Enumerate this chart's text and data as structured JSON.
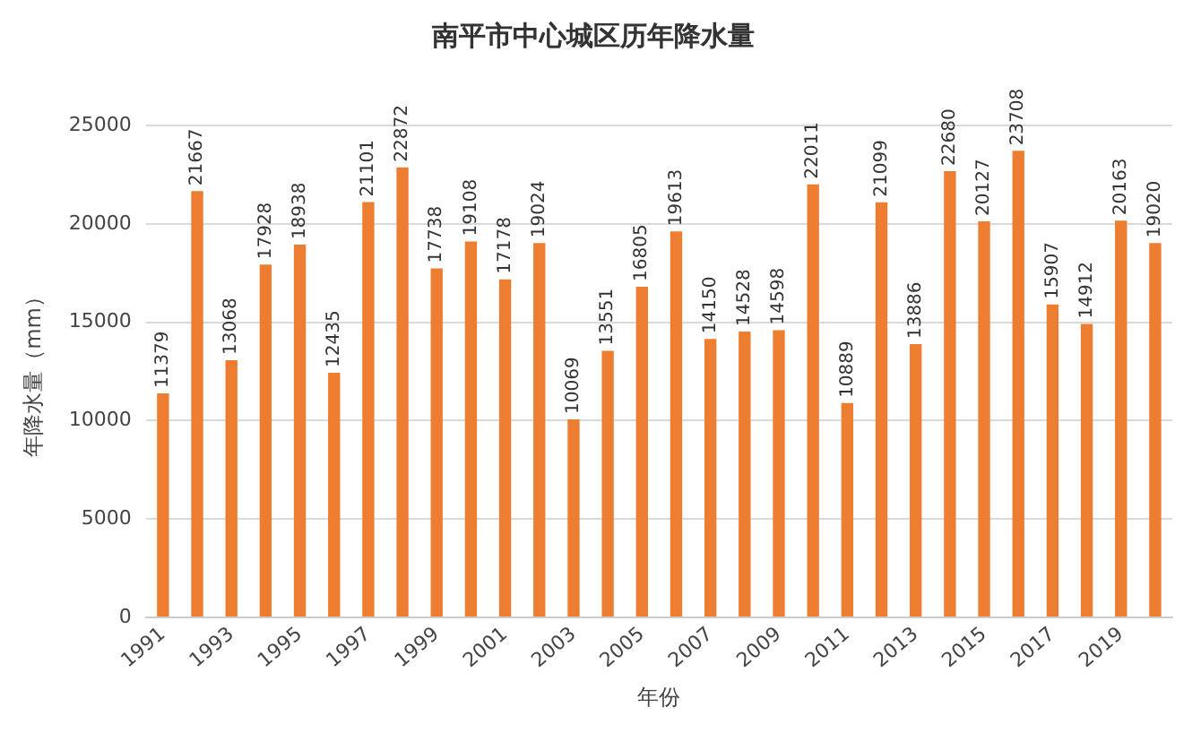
{
  "chart_data": {
    "type": "bar",
    "title": "南平市中心城区历年降水量",
    "xlabel": "年份",
    "ylabel": "年降水量（mm）",
    "categories": [
      "1991",
      null,
      "1993",
      null,
      "1995",
      null,
      "1997",
      null,
      "1999",
      null,
      "2001",
      null,
      "2003",
      null,
      "2005",
      null,
      "2007",
      null,
      "2009",
      null,
      "2011",
      null,
      "2013",
      null,
      "2015",
      null,
      "2017",
      null,
      "2019",
      null
    ],
    "values": [
      11379,
      21667,
      13068,
      17928,
      18938,
      12435,
      21101,
      22872,
      17738,
      19108,
      17178,
      19024,
      10069,
      13551,
      16805,
      19613,
      14150,
      14528,
      14598,
      22011,
      10889,
      21099,
      13886,
      22680,
      20127,
      23708,
      15907,
      14912,
      20163,
      19020
    ],
    "color": "#ed7d31",
    "ylim": [
      0,
      25000
    ],
    "yticks": [
      0,
      5000,
      10000,
      15000,
      20000,
      25000
    ],
    "grid": "y",
    "data_labels": true
  }
}
